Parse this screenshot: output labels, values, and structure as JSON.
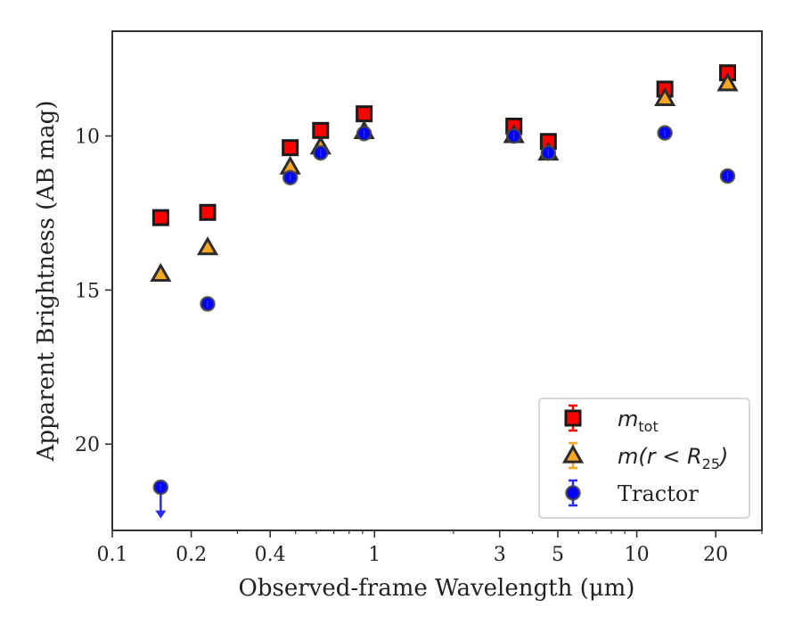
{
  "chart_data": {
    "type": "scatter",
    "title": "",
    "xlabel": "Observed-frame Wavelength (μm)",
    "ylabel": "Apparent Brightness (AB mag)",
    "xscale": "log",
    "xlim": [
      0.1,
      30
    ],
    "ylim": [
      22.8,
      6.6
    ],
    "y_inverted": true,
    "grid": false,
    "legend_placement": "lower-right",
    "x_ticks": [
      {
        "value": 0.1,
        "label": "0.1"
      },
      {
        "value": 0.2,
        "label": "0.2"
      },
      {
        "value": 0.4,
        "label": "0.4"
      },
      {
        "value": 1,
        "label": "1"
      },
      {
        "value": 3,
        "label": "3"
      },
      {
        "value": 5,
        "label": "5"
      },
      {
        "value": 10,
        "label": "10"
      },
      {
        "value": 20,
        "label": "20"
      }
    ],
    "y_ticks": [
      {
        "value": 10,
        "label": "10"
      },
      {
        "value": 15,
        "label": "15"
      },
      {
        "value": 20,
        "label": "20"
      }
    ],
    "series": [
      {
        "name": "m_tot",
        "legend_main": "m",
        "legend_sub": "tot",
        "marker": "square",
        "color": "#ff0000",
        "points": [
          {
            "x": 0.153,
            "y": 12.65
          },
          {
            "x": 0.231,
            "y": 12.48
          },
          {
            "x": 0.477,
            "y": 10.38
          },
          {
            "x": 0.623,
            "y": 9.82
          },
          {
            "x": 0.913,
            "y": 9.28
          },
          {
            "x": 3.4,
            "y": 9.68
          },
          {
            "x": 4.6,
            "y": 10.18
          },
          {
            "x": 12.8,
            "y": 8.48
          },
          {
            "x": 22.2,
            "y": 7.95
          }
        ]
      },
      {
        "name": "m(r < R_25)",
        "legend_pre": "m(r < R",
        "legend_sub": "25",
        "legend_post": ")",
        "marker": "triangle",
        "color": "#f5a623",
        "points": [
          {
            "x": 0.153,
            "y": 14.48
          },
          {
            "x": 0.231,
            "y": 13.62
          },
          {
            "x": 0.477,
            "y": 11.0
          },
          {
            "x": 0.623,
            "y": 10.35
          },
          {
            "x": 0.913,
            "y": 9.85
          },
          {
            "x": 3.4,
            "y": 9.98
          },
          {
            "x": 4.6,
            "y": 10.55
          },
          {
            "x": 12.8,
            "y": 8.78
          },
          {
            "x": 22.2,
            "y": 8.3
          }
        ]
      },
      {
        "name": "Tractor",
        "legend_text": "Tractor",
        "marker": "circle",
        "color": "#0000ff",
        "upper_limit_x": 0.153,
        "points": [
          {
            "x": 0.153,
            "y": 21.4
          },
          {
            "x": 0.231,
            "y": 15.45
          },
          {
            "x": 0.477,
            "y": 11.35
          },
          {
            "x": 0.623,
            "y": 10.55
          },
          {
            "x": 0.913,
            "y": 9.92
          },
          {
            "x": 3.4,
            "y": 10.0
          },
          {
            "x": 4.6,
            "y": 10.55
          },
          {
            "x": 12.8,
            "y": 9.9
          },
          {
            "x": 22.2,
            "y": 11.3
          }
        ]
      }
    ]
  }
}
